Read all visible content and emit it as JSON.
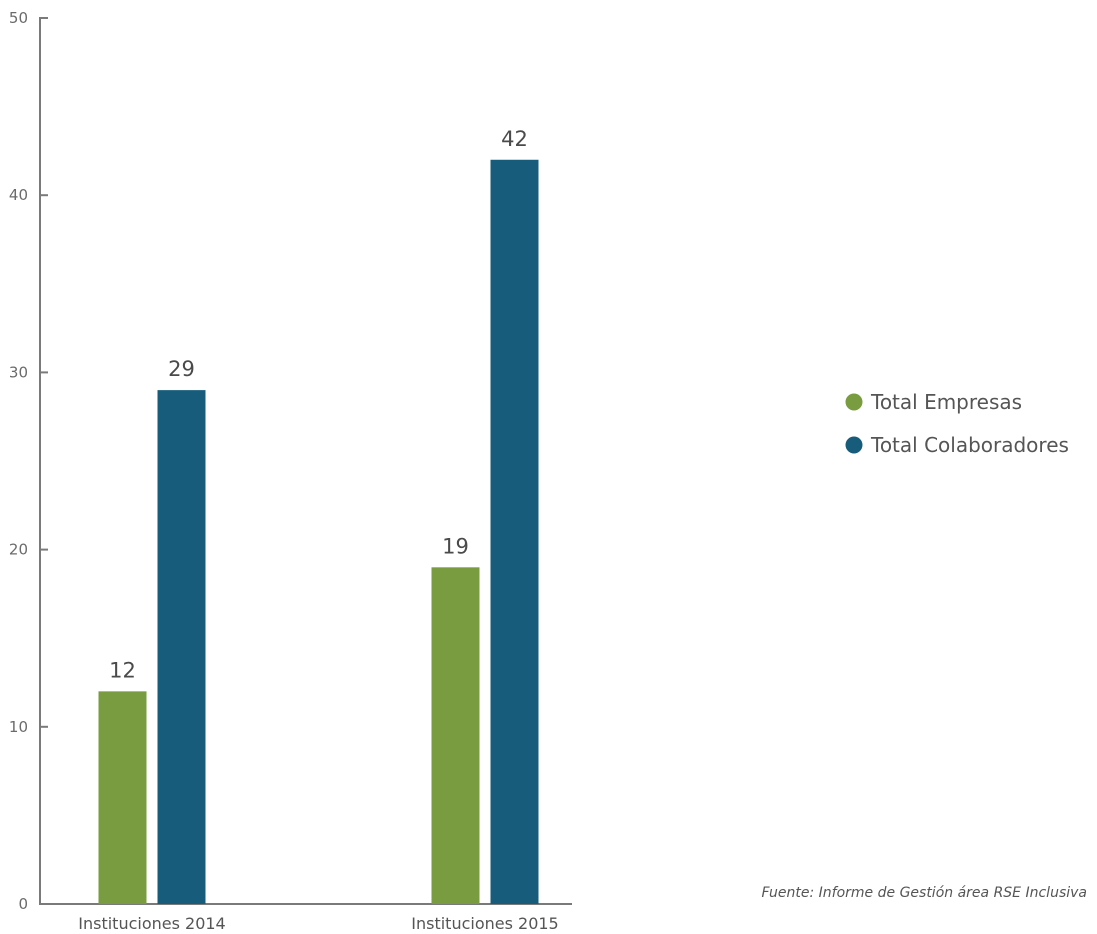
{
  "chart_data": {
    "type": "bar",
    "categories": [
      "Instituciones 2014",
      "Instituciones 2015"
    ],
    "series": [
      {
        "name": "Total Empresas",
        "values": [
          12,
          19
        ],
        "color": "#789c3f"
      },
      {
        "name": "Total Colaboradores",
        "values": [
          29,
          42
        ],
        "color": "#175c7b"
      }
    ],
    "ylim": [
      0,
      50
    ],
    "yticks": [
      0,
      10,
      20,
      30,
      40,
      50
    ],
    "grid": false,
    "data_labels": true,
    "legend_position": "right",
    "source_note": "Fuente: Informe de Gestión área RSE Inclusiva",
    "axis_color": "#7a7a7a"
  }
}
